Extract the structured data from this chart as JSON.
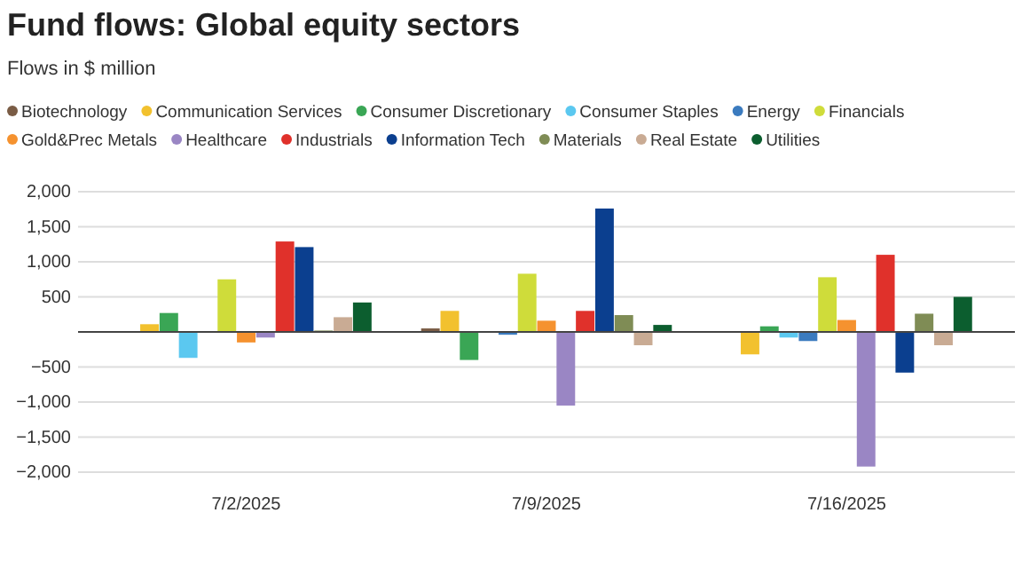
{
  "chart_data": {
    "type": "bar",
    "title": "Fund flows: Global equity sectors",
    "subtitle": "Flows in $ million",
    "categories": [
      "7/2/2025",
      "7/9/2025",
      "7/16/2025"
    ],
    "series": [
      {
        "name": "Biotechnology",
        "color": "#7a5c45",
        "values": [
          0,
          50,
          0
        ]
      },
      {
        "name": "Communication Services",
        "color": "#f2c12e",
        "values": [
          110,
          300,
          -320
        ]
      },
      {
        "name": "Consumer Discretionary",
        "color": "#3aa655",
        "values": [
          270,
          -400,
          80
        ]
      },
      {
        "name": "Consumer Staples",
        "color": "#5bc8f0",
        "values": [
          -370,
          0,
          -80
        ]
      },
      {
        "name": "Energy",
        "color": "#3b7bbf",
        "values": [
          0,
          -40,
          -130
        ]
      },
      {
        "name": "Financials",
        "color": "#cfdc3a",
        "values": [
          750,
          830,
          780
        ]
      },
      {
        "name": "Gold&Prec Metals",
        "color": "#f5922f",
        "values": [
          -150,
          160,
          170
        ]
      },
      {
        "name": "Healthcare",
        "color": "#9a86c4",
        "values": [
          -80,
          -1050,
          -1920
        ]
      },
      {
        "name": "Industrials",
        "color": "#e0312b",
        "values": [
          1290,
          300,
          1100
        ]
      },
      {
        "name": "Information Tech",
        "color": "#0b3f8f",
        "values": [
          1210,
          1760,
          -580
        ]
      },
      {
        "name": "Materials",
        "color": "#7f8c55",
        "values": [
          20,
          240,
          260
        ]
      },
      {
        "name": "Real Estate",
        "color": "#c9ab94",
        "values": [
          210,
          -190,
          -190
        ]
      },
      {
        "name": "Utilities",
        "color": "#0c5e2f",
        "values": [
          420,
          100,
          500
        ]
      }
    ],
    "ylim": [
      -2000,
      2000
    ],
    "yticks": [
      {
        "value": -2000,
        "label": "−2,000"
      },
      {
        "value": -1500,
        "label": "−1,500"
      },
      {
        "value": -1000,
        "label": "−1,000"
      },
      {
        "value": -500,
        "label": "−500"
      },
      {
        "value": 500,
        "label": "500"
      },
      {
        "value": 1000,
        "label": "1,000"
      },
      {
        "value": 1500,
        "label": "1,500"
      },
      {
        "value": 2000,
        "label": "2,000"
      }
    ],
    "grid": "y",
    "legend": "top left"
  }
}
